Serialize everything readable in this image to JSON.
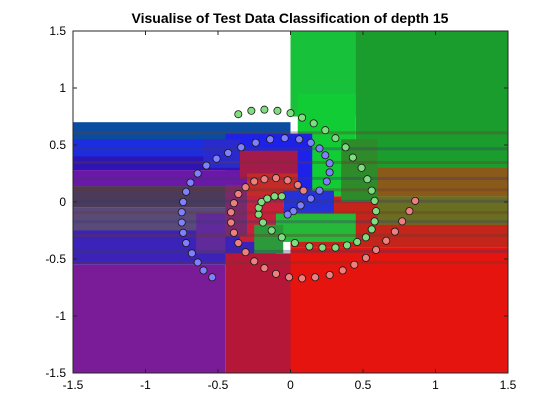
{
  "chart_data": {
    "type": "scatter",
    "title": "Visualise of Test Data Classification of depth 15",
    "xlabel": "",
    "ylabel": "",
    "xlim": [
      -1.5,
      1.5
    ],
    "ylim": [
      -1.5,
      1.5
    ],
    "xticks": [
      "-1.5",
      "-1",
      "-0.5",
      "0",
      "0.5",
      "1",
      "1.5"
    ],
    "yticks": [
      "1.5",
      "1",
      "0.5",
      "0",
      "-0.5",
      "-1",
      "-1.5"
    ],
    "grid": false,
    "legend": "none",
    "background": "decision-region map (RGB class probabilities, depth-15 tree)",
    "series": [
      {
        "color": "#7f7fff",
        "x": [
          -0.54,
          -0.6,
          -0.64,
          -0.68,
          -0.72,
          -0.74,
          -0.75,
          -0.75,
          -0.74,
          -0.72,
          -0.69,
          -0.64,
          -0.58,
          -0.51,
          -0.43,
          -0.34,
          -0.24,
          -0.14,
          -0.04,
          0.06,
          0.14,
          0.2,
          0.24,
          0.27,
          0.27,
          0.25,
          0.2,
          0.14,
          0.07,
          0.02,
          -0.02
        ],
        "y": [
          -0.66,
          -0.6,
          -0.53,
          -0.45,
          -0.36,
          -0.27,
          -0.18,
          -0.09,
          0.0,
          0.09,
          0.17,
          0.25,
          0.32,
          0.38,
          0.43,
          0.48,
          0.52,
          0.55,
          0.56,
          0.55,
          0.52,
          0.47,
          0.41,
          0.34,
          0.26,
          0.18,
          0.1,
          0.03,
          -0.03,
          -0.08,
          -0.11
        ]
      },
      {
        "color": "#7fdf7f",
        "x": [
          -0.36,
          -0.27,
          -0.18,
          -0.09,
          0.0,
          0.08,
          0.16,
          0.24,
          0.31,
          0.38,
          0.43,
          0.49,
          0.53,
          0.56,
          0.58,
          0.59,
          0.58,
          0.56,
          0.52,
          0.46,
          0.39,
          0.31,
          0.22,
          0.13,
          0.03,
          -0.06,
          -0.13,
          -0.19,
          -0.22,
          -0.22,
          -0.2,
          -0.16,
          -0.11,
          -0.06
        ],
        "y": [
          0.77,
          0.8,
          0.81,
          0.8,
          0.78,
          0.74,
          0.69,
          0.63,
          0.56,
          0.48,
          0.39,
          0.3,
          0.2,
          0.1,
          0.01,
          -0.08,
          -0.17,
          -0.24,
          -0.31,
          -0.35,
          -0.38,
          -0.4,
          -0.4,
          -0.39,
          -0.36,
          -0.31,
          -0.25,
          -0.18,
          -0.11,
          -0.05,
          0.0,
          0.03,
          0.05,
          0.05
        ]
      },
      {
        "color": "#ef7f7f",
        "x": [
          0.86,
          0.82,
          0.77,
          0.72,
          0.66,
          0.59,
          0.52,
          0.44,
          0.36,
          0.27,
          0.17,
          0.08,
          -0.01,
          -0.1,
          -0.18,
          -0.25,
          -0.31,
          -0.36,
          -0.39,
          -0.41,
          -0.41,
          -0.39,
          -0.36,
          -0.31,
          -0.25,
          -0.18,
          -0.1,
          -0.02,
          0.05,
          0.09
        ],
        "y": [
          0.01,
          -0.08,
          -0.17,
          -0.26,
          -0.34,
          -0.42,
          -0.49,
          -0.55,
          -0.6,
          -0.64,
          -0.66,
          -0.67,
          -0.66,
          -0.63,
          -0.58,
          -0.52,
          -0.44,
          -0.36,
          -0.27,
          -0.18,
          -0.09,
          -0.01,
          0.07,
          0.13,
          0.18,
          0.2,
          0.21,
          0.19,
          0.15,
          0.1
        ]
      }
    ]
  }
}
